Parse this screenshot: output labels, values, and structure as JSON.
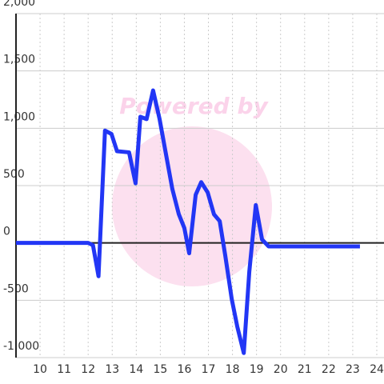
{
  "chart_data": {
    "type": "line",
    "watermark": "Powered by",
    "x": [
      9,
      12,
      12.2,
      12.43,
      12.7,
      12.97,
      13.2,
      13.7,
      13.97,
      14.17,
      14.43,
      14.7,
      14.97,
      15.23,
      15.5,
      15.77,
      16.0,
      16.2,
      16.47,
      16.7,
      16.97,
      17.23,
      17.47,
      17.7,
      17.97,
      18.2,
      18.47,
      18.7,
      18.97,
      19.23,
      19.5,
      23.3
    ],
    "series": [
      {
        "color": "#2236f5",
        "values": [
          0,
          0,
          -20,
          -290,
          980,
          950,
          800,
          790,
          520,
          1100,
          1080,
          1330,
          1080,
          780,
          470,
          250,
          130,
          -90,
          420,
          530,
          440,
          250,
          190,
          -110,
          -490,
          -730,
          -960,
          -250,
          330,
          30,
          -30,
          -30
        ]
      }
    ],
    "xlim": [
      9,
      24.3
    ],
    "ylim": [
      -1000,
      2000
    ],
    "xticks": [
      10,
      11,
      12,
      13,
      14,
      15,
      16,
      17,
      18,
      19,
      20,
      21,
      22,
      23,
      24
    ],
    "yticks": [
      {
        "value": -1000,
        "label": "-1,000"
      },
      {
        "value": -500,
        "label": "-500"
      },
      0,
      500,
      {
        "value": 1000,
        "label": "1,000"
      },
      {
        "value": 1500,
        "label": "1,500"
      },
      {
        "value": 2000,
        "label": "2,000"
      }
    ],
    "grid": true
  }
}
